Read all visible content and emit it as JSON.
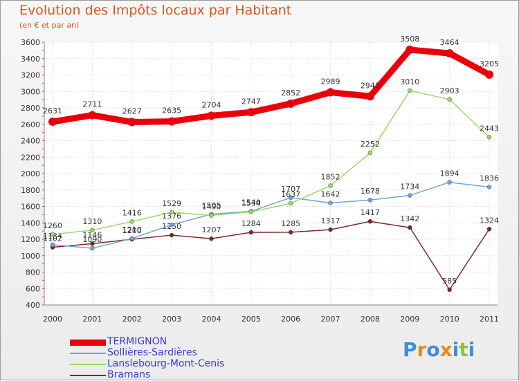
{
  "header": {
    "title": "Evolution des Impôts locaux par Habitant",
    "subtitle": "(en € et par an)"
  },
  "logo": {
    "letters": [
      "P",
      "r",
      "o",
      "x",
      "i",
      "t",
      "i"
    ],
    "colors": [
      "#3a8fd8",
      "#e8891e",
      "#3a8fd8",
      "#e8891e",
      "#3a8fd8",
      "#8fc43a",
      "#3a8fd8"
    ]
  },
  "chart_data": {
    "type": "line",
    "title": "Evolution des Impôts locaux par Habitant",
    "subtitle": "(en € et par an)",
    "xlabel": "",
    "ylabel": "",
    "categories": [
      "2000",
      "2001",
      "2002",
      "2003",
      "2004",
      "2005",
      "2006",
      "2007",
      "2008",
      "2009",
      "2010",
      "2011"
    ],
    "ylim": [
      400,
      3600
    ],
    "yticks": [
      400,
      600,
      800,
      1000,
      1200,
      1400,
      1600,
      1800,
      2000,
      2200,
      2400,
      2600,
      2800,
      3000,
      3200,
      3400,
      3600
    ],
    "grid": true,
    "legend_position": "bottom-left",
    "series": [
      {
        "name": "TERMIGNON",
        "color": "#e8000b",
        "values": [
          2631,
          2711,
          2627,
          2635,
          2704,
          2747,
          2852,
          2989,
          2941,
          3508,
          3464,
          3205
        ],
        "labels": [
          "2631",
          "2711",
          "2627",
          "2635",
          "2704",
          "2747",
          "2852",
          "2989",
          "2941",
          "3508",
          "3464",
          "3205"
        ]
      },
      {
        "name": "Sollières-Sardières",
        "color": "#6ea6d8",
        "values": [
          1134,
          1090,
          1210,
          1376,
          1505,
          1540,
          1707,
          1642,
          1678,
          1734,
          1894,
          1836
        ],
        "labels": [
          "1134",
          "1090",
          "1210",
          "1376",
          "1505",
          "1540",
          "1707",
          "1642",
          "1678",
          "1734",
          "1894",
          "1836"
        ]
      },
      {
        "name": "Lanslebourg-Mont-Cenis",
        "color": "#9ad86a",
        "values": [
          1260,
          1310,
          1416,
          1529,
          1490,
          1534,
          1637,
          1852,
          2252,
          3010,
          2903,
          2443
        ],
        "labels": [
          "1260",
          "1310",
          "1416",
          "1529",
          "1490",
          "1534",
          "1637",
          "1852",
          "2252",
          "3010",
          "2903",
          "2443"
        ]
      },
      {
        "name": "Bramans",
        "color": "#7a2a2a",
        "values": [
          1102,
          1146,
          1200,
          1250,
          1207,
          1284,
          1285,
          1317,
          1417,
          1342,
          585,
          1324
        ],
        "labels": [
          "1102",
          "1146",
          "1200",
          "1250",
          "1207",
          "1284",
          "1285",
          "1317",
          "1417",
          "1342",
          "585",
          "1324"
        ]
      }
    ]
  }
}
